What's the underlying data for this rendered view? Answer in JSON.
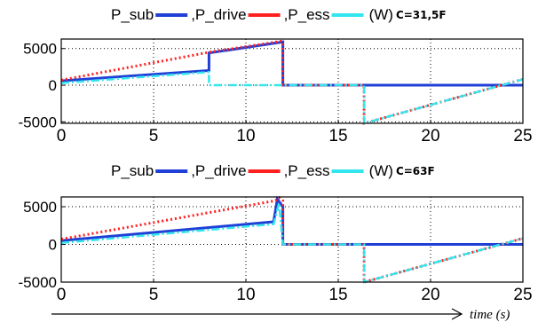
{
  "chart_data": [
    {
      "type": "line",
      "legend_title": "P_sub",
      "unit_label": "(W)",
      "annotation": "C=31,5F",
      "xlim": [
        0,
        25
      ],
      "ylim": [
        -5200,
        6300
      ],
      "xticks": [
        0,
        5,
        10,
        15,
        20,
        25
      ],
      "yticks": [
        5000,
        0,
        -5000
      ],
      "xtick_labels": [
        "0",
        "5",
        "10",
        "15",
        "20",
        "25"
      ],
      "ytick_labels": [
        "5000",
        "0",
        "-5000"
      ],
      "grid": true,
      "legend_position": "top",
      "series": [
        {
          "key": "P_sub",
          "color": "#1f3fd6",
          "style": "solid",
          "x": [
            0,
            8,
            8,
            12,
            12,
            16.4,
            25
          ],
          "y": [
            600,
            2000,
            4400,
            5900,
            0,
            0,
            0
          ]
        },
        {
          "key": "P_drive",
          "color": "#ff2020",
          "style": "dotted",
          "x": [
            0,
            8,
            11.9,
            12,
            12,
            16.4,
            16.4,
            25
          ],
          "y": [
            700,
            4500,
            6000,
            5800,
            0,
            0,
            -5200,
            800
          ]
        },
        {
          "key": "P_ess",
          "color": "#33e5ee",
          "style": "dashdot",
          "x": [
            0,
            8,
            8,
            12,
            16.4,
            16.4,
            25
          ],
          "y": [
            300,
            1800,
            0,
            0,
            0,
            -5200,
            800
          ]
        }
      ]
    },
    {
      "type": "line",
      "legend_title": "P_sub",
      "unit_label": "(W)",
      "annotation": "C=63F",
      "xlim": [
        0,
        25
      ],
      "ylim": [
        -5000,
        6300
      ],
      "xticks": [
        0,
        5,
        10,
        15,
        20,
        25
      ],
      "yticks": [
        5000,
        0,
        -5000
      ],
      "xtick_labels": [
        "0",
        "5",
        "10",
        "15",
        "20",
        "25"
      ],
      "ytick_labels": [
        "5000",
        "0",
        "-5000"
      ],
      "grid": true,
      "legend_position": "top",
      "x_axis_title": "time (s)",
      "series": [
        {
          "key": "P_sub",
          "color": "#1f3fd6",
          "style": "solid",
          "x": [
            0,
            11.5,
            11.7,
            12,
            12,
            16.4,
            25
          ],
          "y": [
            500,
            3000,
            6000,
            5000,
            0,
            0,
            0
          ]
        },
        {
          "key": "P_drive",
          "color": "#ff2020",
          "style": "dotted",
          "x": [
            0,
            11.6,
            11.8,
            12,
            12,
            16.4,
            16.4,
            25
          ],
          "y": [
            700,
            5800,
            6200,
            5800,
            0,
            0,
            -5000,
            800
          ]
        },
        {
          "key": "P_ess",
          "color": "#33e5ee",
          "style": "dashdot",
          "x": [
            0,
            11.5,
            11.8,
            12,
            16.4,
            16.4,
            25
          ],
          "y": [
            200,
            2700,
            5500,
            0,
            0,
            -5000,
            800
          ]
        }
      ]
    }
  ],
  "legend_labels": [
    {
      "sep": "",
      "text": "P_sub"
    },
    {
      "sep": ",",
      "text": "P_drive"
    },
    {
      "sep": ",",
      "text": "P_ess"
    }
  ]
}
